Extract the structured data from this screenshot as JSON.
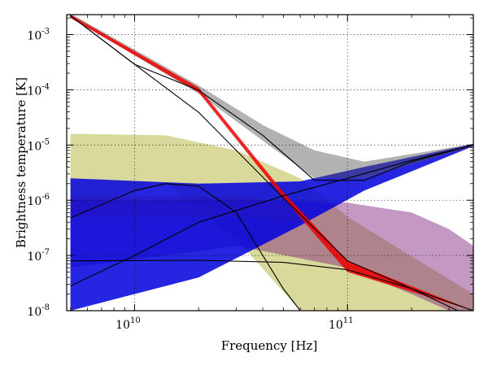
{
  "chart_data": {
    "type": "line",
    "title": "",
    "xlabel": "Frequency [Hz]",
    "ylabel": "Brightness temperature [K]",
    "x_scale": "log",
    "y_scale": "log",
    "xlim": [
      4800000000.0,
      390000000000.0
    ],
    "ylim": [
      1e-08,
      0.0023
    ],
    "grid": true,
    "x_ticks": [
      {
        "value": 10000000000.0,
        "base": "10",
        "exp": "10"
      },
      {
        "value": 100000000000.0,
        "base": "10",
        "exp": "11"
      }
    ],
    "y_ticks": [
      {
        "value": 0.001,
        "base": "10",
        "exp": "-3"
      },
      {
        "value": 0.0001,
        "base": "10",
        "exp": "-4"
      },
      {
        "value": 1e-05,
        "base": "10",
        "exp": "-5"
      },
      {
        "value": 1e-06,
        "base": "10",
        "exp": "-6"
      },
      {
        "value": 1e-07,
        "base": "10",
        "exp": "-7"
      },
      {
        "value": 1e-08,
        "base": "10",
        "exp": "-8"
      }
    ],
    "bands": [
      {
        "color": "#aaaa22",
        "values": [
          [
            5000000000.0,
            6e-07,
            1.6e-05
          ],
          [
            14000000000.0,
            2e-06,
            1.5e-05
          ],
          [
            30000000000.0,
            2e-07,
            8e-06
          ],
          [
            60000000000.0,
            1e-08,
            2.5e-06
          ],
          [
            100000000000.0,
            1e-08,
            5e-07
          ],
          [
            390000000000.0,
            1e-08,
            2e-08
          ]
        ]
      },
      {
        "color": "#7a1a7a",
        "values": [
          [
            5000000000.0,
            6e-08,
            1e-06
          ],
          [
            30000000000.0,
            1.5e-07,
            1e-06
          ],
          [
            100000000000.0,
            6e-08,
            9e-07
          ],
          [
            200000000000.0,
            2e-08,
            6e-07
          ],
          [
            300000000000.0,
            1e-08,
            3e-07
          ],
          [
            390000000000.0,
            1e-08,
            1.5e-07
          ]
        ]
      },
      {
        "color": "#ff8800",
        "values": [
          [
            5000000000.0,
            5e-07,
            1.2e-06
          ],
          [
            30000000000.0,
            5e-07,
            1.2e-06
          ],
          [
            60000000000.0,
            4e-07,
            8e-07
          ]
        ]
      },
      {
        "color": "#0000dd",
        "values": [
          [
            5000000000.0,
            1e-08,
            2.5e-06
          ],
          [
            20000000000.0,
            4e-08,
            2e-06
          ],
          [
            60000000000.0,
            3.5e-07,
            2.2e-06
          ],
          [
            120000000000.0,
            1.5e-06,
            4e-06
          ],
          [
            390000000000.0,
            9.5e-06,
            1.05e-05
          ]
        ]
      },
      {
        "color": "#555555",
        "values": [
          [
            5000000000.0,
            0.0021,
            0.0024
          ],
          [
            20000000000.0,
            8.5e-05,
            0.00012
          ],
          [
            40000000000.0,
            1.2e-05,
            2.3e-05
          ],
          [
            70000000000.0,
            2.5e-06,
            8e-06
          ],
          [
            120000000000.0,
            2.5e-06,
            5e-06
          ],
          [
            390000000000.0,
            9.5e-06,
            1.05e-05
          ]
        ]
      },
      {
        "color": "#ee0000",
        "values": [
          [
            5000000000.0,
            0.002,
            0.0023
          ],
          [
            20000000000.0,
            9e-05,
            0.00011
          ],
          [
            50000000000.0,
            1.1e-06,
            1.4e-06
          ],
          [
            100000000000.0,
            5e-08,
            8e-08
          ],
          [
            390000000000.0,
            1e-08,
            1e-08
          ]
        ]
      }
    ],
    "series": [
      {
        "color": "#000000",
        "values": [
          [
            5000000000.0,
            0.0022
          ],
          [
            10000000000.0,
            0.00029
          ],
          [
            20000000000.0,
            9.8e-05
          ],
          [
            40000000000.0,
            1.5e-05
          ],
          [
            70000000000.0,
            2.3e-06
          ],
          [
            120000000000.0,
            2.3e-06
          ],
          [
            200000000000.0,
            5e-06
          ],
          [
            390000000000.0,
            1e-05
          ]
        ]
      },
      {
        "color": "#000000",
        "values": [
          [
            5000000000.0,
            0.0022
          ],
          [
            10000000000.0,
            0.00029
          ],
          [
            20000000000.0,
            3.9e-05
          ],
          [
            50000000000.0,
            1.1e-06
          ],
          [
            100000000000.0,
            8e-08
          ],
          [
            200000000000.0,
            2.5e-08
          ],
          [
            390000000000.0,
            1e-08
          ]
        ]
      },
      {
        "color": "#000000",
        "values": [
          [
            5000000000.0,
            2.8e-08
          ],
          [
            10000000000.0,
            1e-07
          ],
          [
            20000000000.0,
            4e-07
          ],
          [
            50000000000.0,
            1.2e-06
          ],
          [
            100000000000.0,
            2.5e-06
          ],
          [
            200000000000.0,
            5.3e-06
          ],
          [
            390000000000.0,
            1e-05
          ]
        ]
      },
      {
        "color": "#000000",
        "values": [
          [
            5000000000.0,
            4.8e-07
          ],
          [
            10000000000.0,
            1.5e-06
          ],
          [
            14000000000.0,
            2e-06
          ],
          [
            20000000000.0,
            1.8e-06
          ],
          [
            30000000000.0,
            6e-07
          ],
          [
            40000000000.0,
            1e-07
          ],
          [
            50000000000.0,
            2.5e-08
          ],
          [
            60000000000.0,
            1e-08
          ]
        ]
      },
      {
        "color": "#000000",
        "values": [
          [
            5000000000.0,
            8e-08
          ],
          [
            20000000000.0,
            8.2e-08
          ],
          [
            50000000000.0,
            7.5e-08
          ],
          [
            100000000000.0,
            5.5e-08
          ],
          [
            200000000000.0,
            2.5e-08
          ],
          [
            330000000000.0,
            1e-08
          ]
        ]
      }
    ]
  }
}
